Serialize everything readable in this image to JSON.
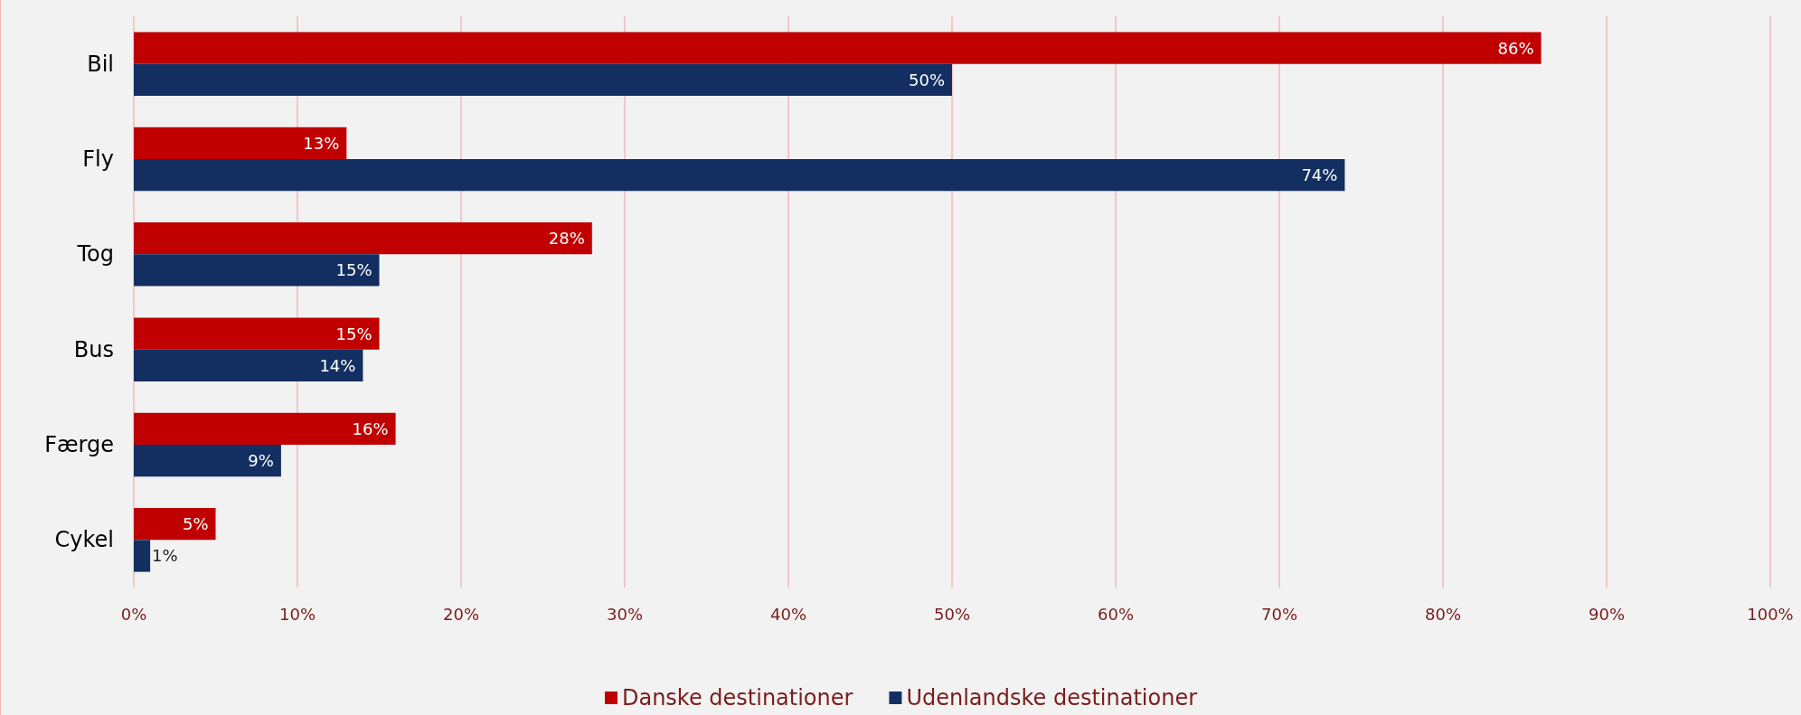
{
  "chart_data": {
    "type": "bar",
    "orientation": "horizontal",
    "categories": [
      "Bil",
      "Fly",
      "Tog",
      "Bus",
      "Færge",
      "Cykel"
    ],
    "series": [
      {
        "name": "Danske destinationer",
        "color": "#c00000",
        "values": [
          86,
          13,
          28,
          15,
          16,
          5
        ],
        "value_labels": [
          "86%",
          "13%",
          "28%",
          "15%",
          "16%",
          "5%"
        ]
      },
      {
        "name": "Udenlandske destinationer",
        "color": "#132f62",
        "values": [
          50,
          74,
          15,
          14,
          9,
          1
        ],
        "value_labels": [
          "50%",
          "74%",
          "15%",
          "14%",
          "9%",
          "1%"
        ]
      }
    ],
    "xlim": [
      0,
      100
    ],
    "xticks": [
      {
        "value": 0,
        "label": "0%"
      },
      {
        "value": 10,
        "label": "10%"
      },
      {
        "value": 20,
        "label": "20%"
      },
      {
        "value": 30,
        "label": "30%"
      },
      {
        "value": 40,
        "label": "40%"
      },
      {
        "value": 50,
        "label": "50%"
      },
      {
        "value": 60,
        "label": "60%"
      },
      {
        "value": 70,
        "label": "70%"
      },
      {
        "value": 80,
        "label": "80%"
      },
      {
        "value": 90,
        "label": "90%"
      },
      {
        "value": 100,
        "label": "100%"
      }
    ],
    "grid": "x",
    "legend": "bottom"
  }
}
